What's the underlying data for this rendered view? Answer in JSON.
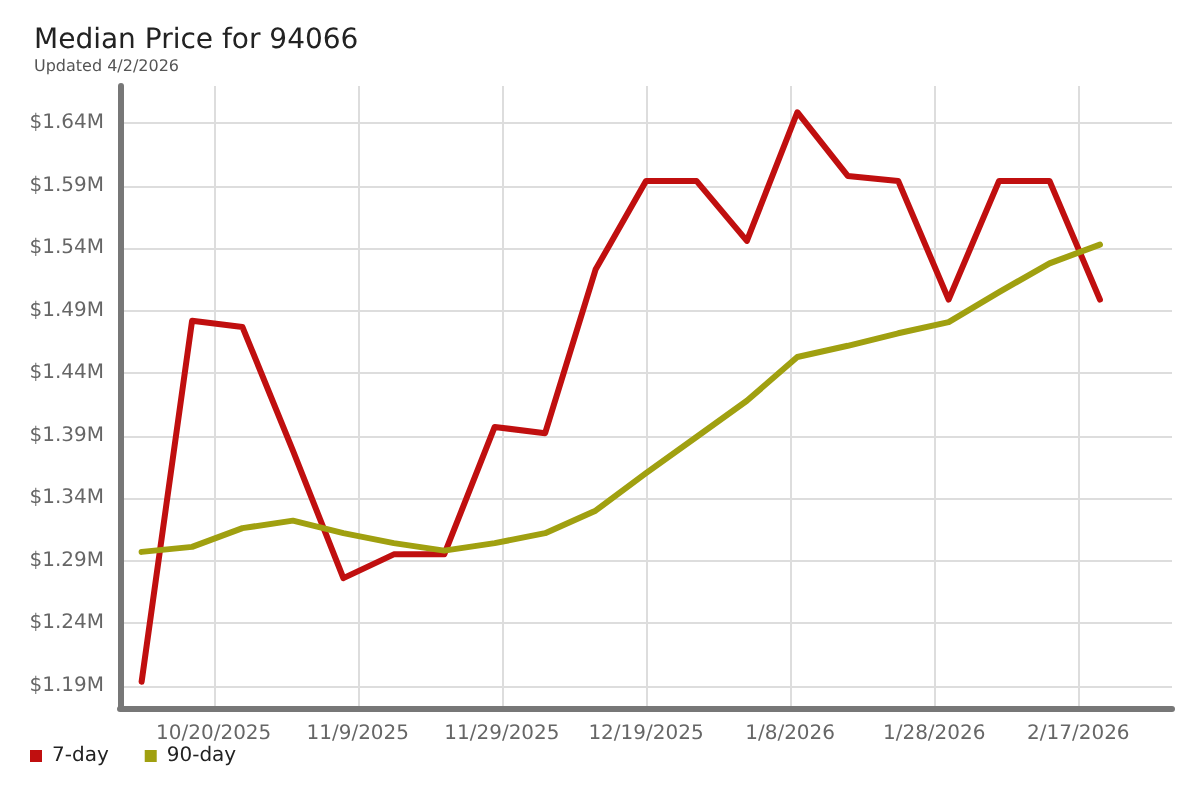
{
  "chart_data": {
    "type": "line",
    "title": "Median Price for 94066",
    "subtitle": "Updated 4/2/2026",
    "x": [
      "2025-10-10",
      "2025-10-17",
      "2025-10-24",
      "2025-10-31",
      "2025-11-07",
      "2025-11-14",
      "2025-11-21",
      "2025-11-28",
      "2025-12-05",
      "2025-12-12",
      "2025-12-19",
      "2025-12-26",
      "2026-01-02",
      "2026-01-09",
      "2026-01-16",
      "2026-01-23",
      "2026-01-30",
      "2026-02-06",
      "2026-02-13",
      "2026-02-20"
    ],
    "series": [
      {
        "name": "7-day",
        "color": "#c00f0f",
        "values": [
          1.193,
          1.482,
          1.477,
          1.378,
          1.276,
          1.295,
          1.295,
          1.397,
          1.392,
          1.523,
          1.594,
          1.594,
          1.546,
          1.649,
          1.598,
          1.594,
          1.499,
          1.594,
          1.594,
          1.499
        ]
      },
      {
        "name": "90-day",
        "color": "#a0a010",
        "values": [
          1.297,
          1.301,
          1.316,
          1.322,
          1.312,
          1.304,
          1.298,
          1.304,
          1.312,
          1.33,
          1.36,
          1.389,
          1.418,
          1.453,
          1.462,
          1.472,
          1.481,
          1.505,
          1.528,
          1.543
        ]
      }
    ],
    "xlim": [
      "2025-10-07",
      "2026-03-02"
    ],
    "xticks": [
      {
        "value": "2025-10-20",
        "label": "10/20/2025"
      },
      {
        "value": "2025-11-09",
        "label": "11/9/2025"
      },
      {
        "value": "2025-11-29",
        "label": "11/29/2025"
      },
      {
        "value": "2025-12-19",
        "label": "12/19/2025"
      },
      {
        "value": "2026-01-08",
        "label": "1/8/2026"
      },
      {
        "value": "2026-01-28",
        "label": "1/28/2026"
      },
      {
        "value": "2026-02-17",
        "label": "2/17/2026"
      }
    ],
    "ylim": [
      1.172,
      1.67
    ],
    "yticks": [
      {
        "value": 1.19,
        "label": "$1.19M"
      },
      {
        "value": 1.24,
        "label": "$1.24M"
      },
      {
        "value": 1.29,
        "label": "$1.29M"
      },
      {
        "value": 1.34,
        "label": "$1.34M"
      },
      {
        "value": 1.39,
        "label": "$1.39M"
      },
      {
        "value": 1.44,
        "label": "$1.44M"
      },
      {
        "value": 1.49,
        "label": "$1.49M"
      },
      {
        "value": 1.54,
        "label": "$1.54M"
      },
      {
        "value": 1.59,
        "label": "$1.59M"
      },
      {
        "value": 1.64,
        "label": "$1.64M"
      }
    ],
    "grid": true,
    "legend": "bottom left",
    "marker": "none",
    "line_style": "solid"
  }
}
